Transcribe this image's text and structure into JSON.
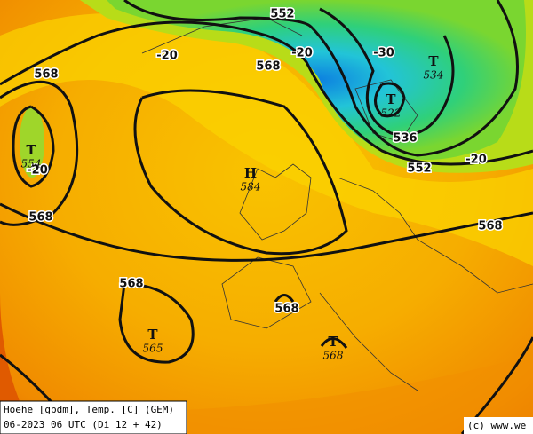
{
  "map": {
    "contour_labels": [
      "552",
      "568",
      "568",
      "-20",
      "-20",
      "-30",
      "536",
      "552",
      "-20",
      "-20",
      "568",
      "568",
      "568",
      "568"
    ],
    "pressure_centers": [
      {
        "symbol": "T",
        "value": "534"
      },
      {
        "symbol": "T",
        "value": "522"
      },
      {
        "symbol": "T",
        "value": "554"
      },
      {
        "symbol": "H",
        "value": "584"
      },
      {
        "symbol": "T",
        "value": "565"
      },
      {
        "symbol": "T",
        "value": "568"
      }
    ],
    "legend": {
      "line1": "Hoehe [gpdm], Temp. [C] (GEM)",
      "line2": "06-2023 06 UTC (Di 12 + 42)"
    },
    "credit": "(c) www.we"
  }
}
